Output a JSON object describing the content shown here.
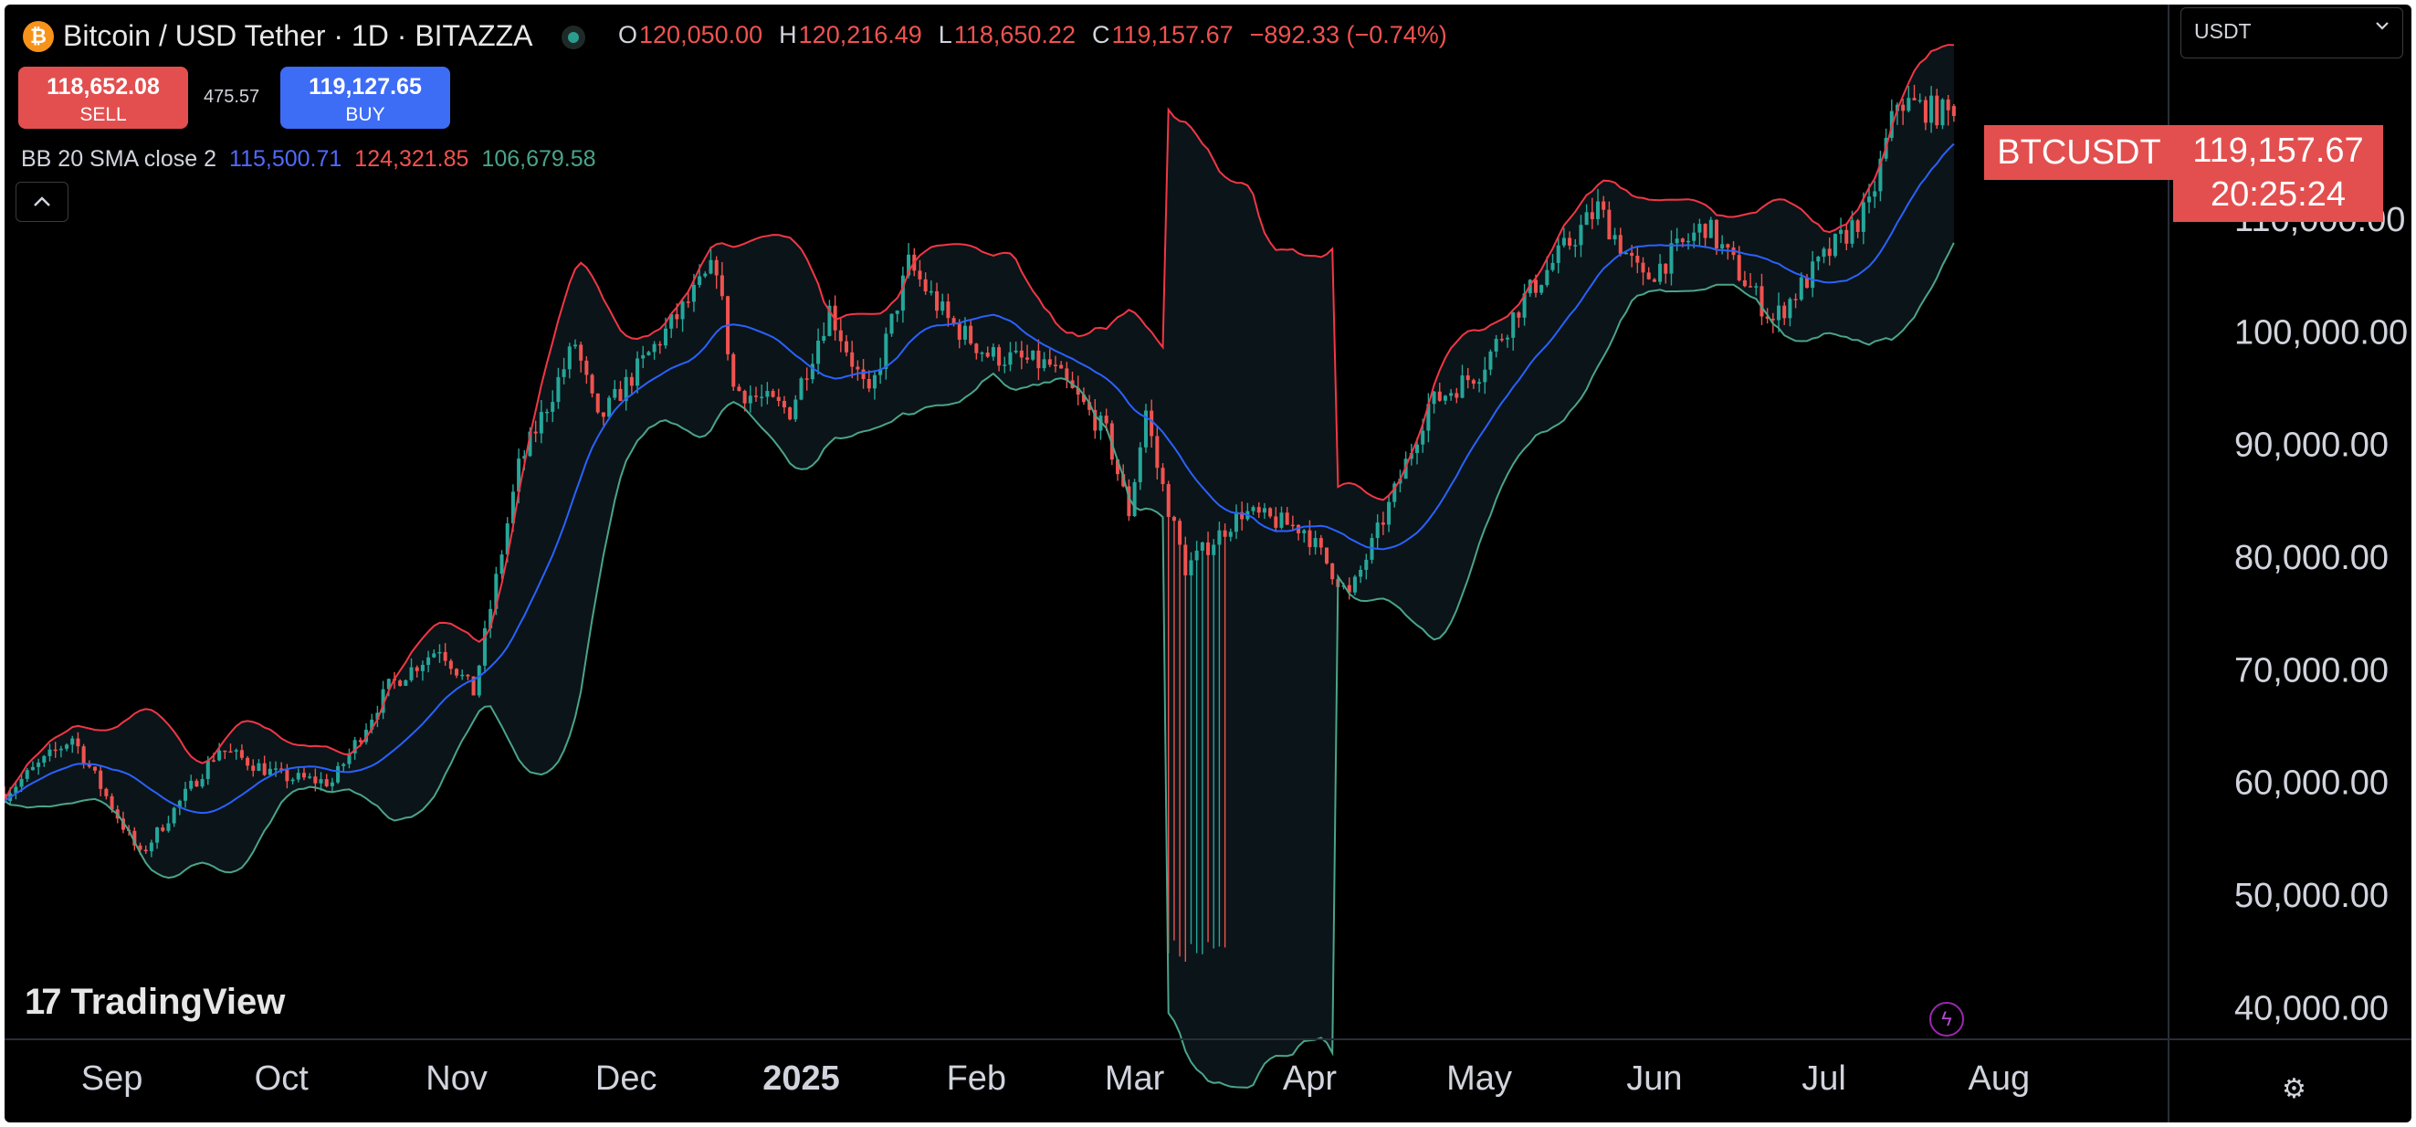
{
  "header": {
    "symbol_title": "Bitcoin / USD Tether · 1D · BITAZZA",
    "ohlc": {
      "o_label": "O",
      "o": "120,050.00",
      "h_label": "H",
      "h": "120,216.49",
      "l_label": "L",
      "l": "118,650.22",
      "c_label": "C",
      "c": "119,157.67",
      "change": "−892.33 (−0.74%)"
    }
  },
  "trade": {
    "sell_price": "118,652.08",
    "sell_label": "SELL",
    "spread": "475.57",
    "buy_price": "119,127.65",
    "buy_label": "BUY"
  },
  "indicator": {
    "name": "BB 20 SMA close 2",
    "basis": "115,500.71",
    "upper": "124,321.85",
    "lower": "106,679.58"
  },
  "currency_select": {
    "value": "USDT"
  },
  "price_badge": {
    "symbol": "BTCUSDT",
    "price": "119,157.67",
    "countdown": "20:25:24"
  },
  "branding": {
    "logo_mark": "17",
    "logo_text": "TradingView"
  },
  "icons": {
    "collapse": "chevron-up-icon",
    "currency": "chevron-down-icon",
    "settings": "settings-icon",
    "bolt": "lightning-icon",
    "coin": "bitcoin-icon"
  },
  "colors": {
    "up": "#26a69a",
    "down": "#ef5350",
    "basis": "#2962ff",
    "upper_band": "#f23645",
    "lower_band": "#4aa48a",
    "band_fill": "#0b1418",
    "badge": "#e34f4f"
  },
  "chart_data": {
    "type": "candlestick",
    "y_axis_ticks": [
      "110,000.00",
      "100,000.00",
      "90,000.00",
      "80,000.00",
      "70,000.00",
      "60,000.00",
      "50,000.00",
      "40,000.00"
    ],
    "ylim": [
      38000,
      125000
    ],
    "x_axis_ticks": [
      "Sep",
      "Oct",
      "Nov",
      "Dec",
      "2025",
      "Feb",
      "Mar",
      "Apr",
      "May",
      "Jun",
      "Jul",
      "Aug"
    ],
    "x_axis_tick_dates": [
      "2024-09-01",
      "2024-10-01",
      "2024-11-01",
      "2024-12-01",
      "2025-01-01",
      "2025-02-01",
      "2025-03-01",
      "2025-04-01",
      "2025-05-01",
      "2025-06-01",
      "2025-07-01",
      "2025-08-01"
    ],
    "xlim": [
      "2024-08-13",
      "2025-08-31"
    ],
    "close_anchors": [
      {
        "date": "2024-08-13",
        "close": 59000
      },
      {
        "date": "2024-08-25",
        "close": 64000
      },
      {
        "date": "2024-09-06",
        "close": 53500
      },
      {
        "date": "2024-09-20",
        "close": 63000
      },
      {
        "date": "2024-10-01",
        "close": 60500
      },
      {
        "date": "2024-10-10",
        "close": 60000
      },
      {
        "date": "2024-10-20",
        "close": 68500
      },
      {
        "date": "2024-10-29",
        "close": 72000
      },
      {
        "date": "2024-11-04",
        "close": 68000
      },
      {
        "date": "2024-11-12",
        "close": 88000
      },
      {
        "date": "2024-11-22",
        "close": 99000
      },
      {
        "date": "2024-11-26",
        "close": 92000
      },
      {
        "date": "2024-12-05",
        "close": 98000
      },
      {
        "date": "2024-12-17",
        "close": 106000
      },
      {
        "date": "2024-12-20",
        "close": 95000
      },
      {
        "date": "2024-12-30",
        "close": 93000
      },
      {
        "date": "2025-01-06",
        "close": 102000
      },
      {
        "date": "2025-01-13",
        "close": 94000
      },
      {
        "date": "2025-01-20",
        "close": 106000
      },
      {
        "date": "2025-01-27",
        "close": 101000
      },
      {
        "date": "2025-02-03",
        "close": 98000
      },
      {
        "date": "2025-02-14",
        "close": 97000
      },
      {
        "date": "2025-02-24",
        "close": 91000
      },
      {
        "date": "2025-02-28",
        "close": 84000
      },
      {
        "date": "2025-03-03",
        "close": 93000
      },
      {
        "date": "2025-03-05",
        "close": 88000
      },
      {
        "date": "2025-03-10",
        "close": 79000
      },
      {
        "date": "2025-03-20",
        "close": 84000
      },
      {
        "date": "2025-03-31",
        "close": 82500
      },
      {
        "date": "2025-04-08",
        "close": 76500
      },
      {
        "date": "2025-04-15",
        "close": 84500
      },
      {
        "date": "2025-04-22",
        "close": 93500
      },
      {
        "date": "2025-05-01",
        "close": 96500
      },
      {
        "date": "2025-05-09",
        "close": 103000
      },
      {
        "date": "2025-05-22",
        "close": 111000
      },
      {
        "date": "2025-05-30",
        "close": 104500
      },
      {
        "date": "2025-06-10",
        "close": 109500
      },
      {
        "date": "2025-06-22",
        "close": 101000
      },
      {
        "date": "2025-07-01",
        "close": 106500
      },
      {
        "date": "2025-07-09",
        "close": 111000
      },
      {
        "date": "2025-07-14",
        "close": 120500
      },
      {
        "date": "2025-07-24",
        "close": 119157.67
      }
    ],
    "anomaly_wicks": {
      "dates": [
        "2025-03-07",
        "2025-03-17"
      ],
      "low": 44000
    },
    "bollinger": {
      "period": 20,
      "stddev": 2
    },
    "last": {
      "open": 120050.0,
      "high": 120216.49,
      "low": 118650.22,
      "close": 119157.67
    }
  }
}
